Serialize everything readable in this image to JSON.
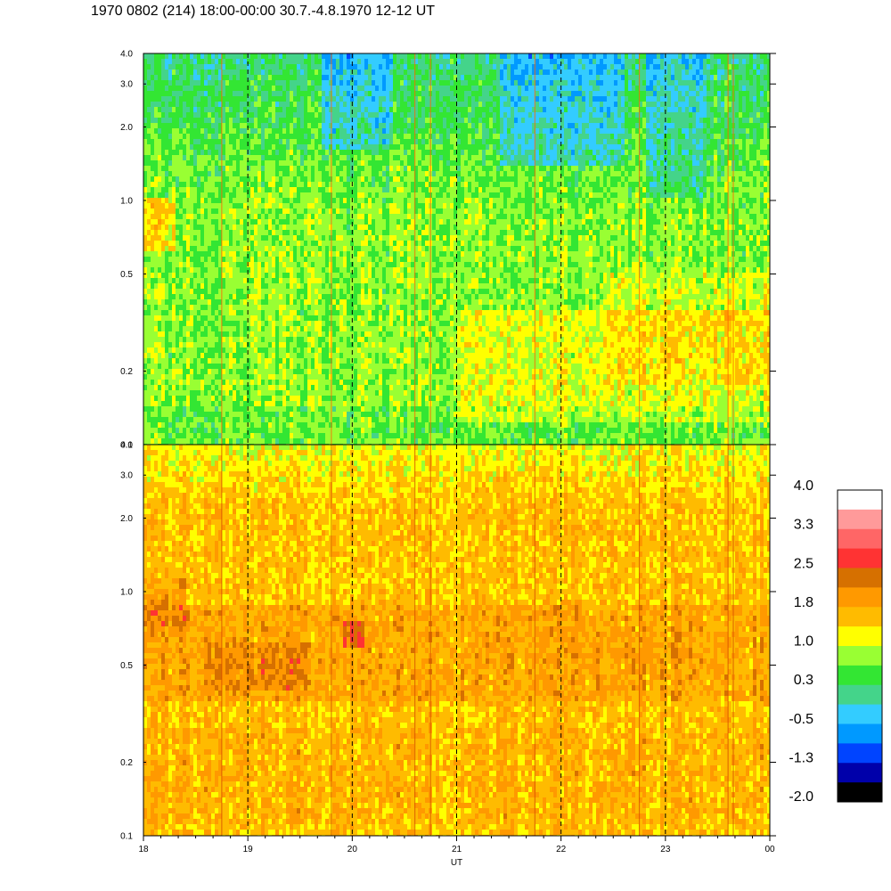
{
  "title": "1970 0802 (214) 18:00-00:00 30.7.-4.8.1970  12-12 UT",
  "chart_data": {
    "type": "heatmap",
    "title": "1970 0802 (214) 18:00-00:00 30.7.-4.8.1970  12-12 UT",
    "xlabel": "UT",
    "x_ticks": [
      "18",
      "19",
      "20",
      "21",
      "22",
      "23",
      "00"
    ],
    "x_range": [
      18,
      24
    ],
    "y_scale": "log",
    "y_range": [
      0.1,
      4.0
    ],
    "y_ticks": [
      "0.1",
      "0.2",
      "0.5",
      "1.0",
      "2.0",
      "3.0",
      "4.0"
    ],
    "vertical_dashed_lines_at_hours": [
      19,
      20,
      21,
      22,
      23
    ],
    "panels": [
      {
        "name": "upper",
        "dominant_range": [
          0.3,
          1.0
        ],
        "blue_patches_near_y": [
          2.0,
          3.5
        ]
      },
      {
        "name": "lower",
        "dominant_range": [
          1.0,
          2.2
        ],
        "dark_orange_band_near_y": [
          0.4,
          0.9
        ]
      }
    ],
    "colorbar": {
      "labels": [
        "4.0",
        "3.3",
        "2.5",
        "1.8",
        "1.0",
        "0.3",
        "-0.5",
        "-1.3",
        "-2.0"
      ],
      "min": -2.0,
      "max": 4.0,
      "colors": [
        "#ffffff",
        "#ff9a9a",
        "#ff6666",
        "#ff3333",
        "#d67000",
        "#ff9900",
        "#ffbb00",
        "#ffff00",
        "#99ff33",
        "#33e633",
        "#44d48a",
        "#33ccff",
        "#0099ff",
        "#0044ff",
        "#0000aa",
        "#000000"
      ]
    }
  }
}
